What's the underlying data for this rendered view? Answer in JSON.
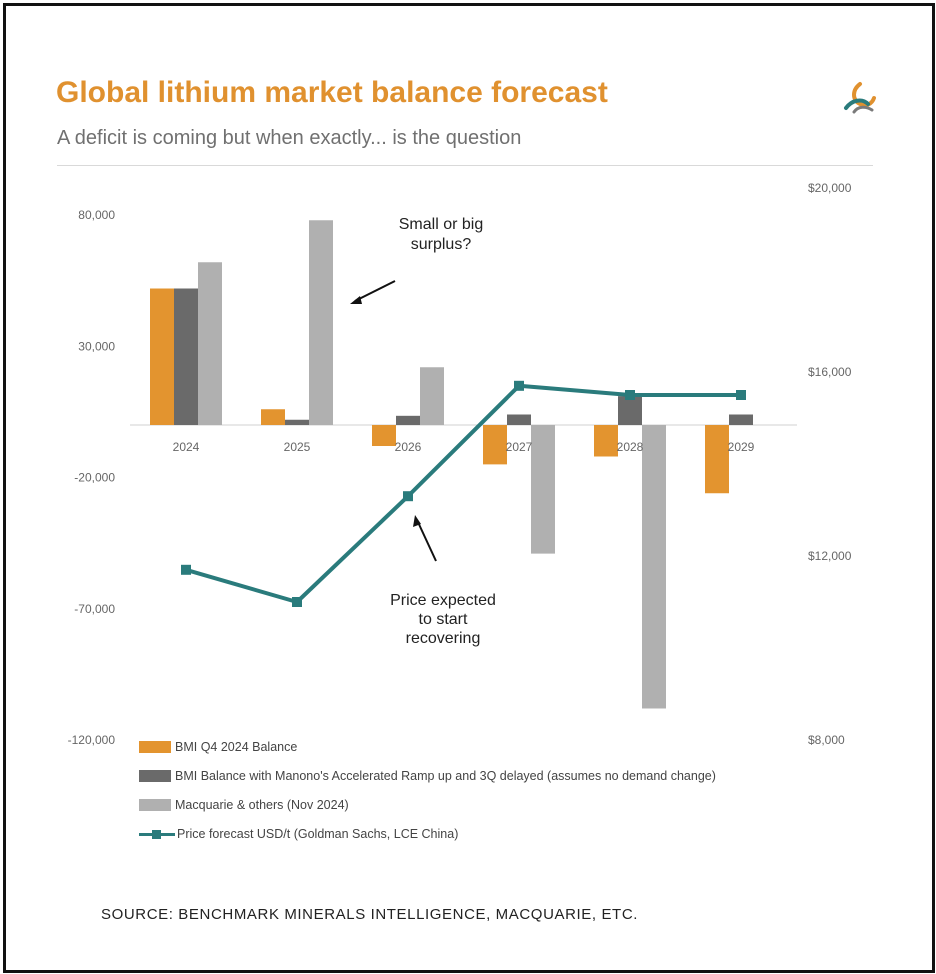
{
  "title": "Global lithium market balance forecast",
  "subtitle": "A deficit is coming but when exactly... is the question",
  "source": "SOURCE: BENCHMARK MINERALS INTELLIGENCE, MACQUARIE, ETC.",
  "logo_icon": "benchmark-swirl-logo",
  "colors": {
    "title": "#e0912f",
    "bmi_q4": "#e3942f",
    "bmi_manono": "#6a6a6a",
    "macquarie": "#b0b0b0",
    "price": "#2a7b7c"
  },
  "annotations": {
    "surplus": [
      "Small or big",
      "surplus?"
    ],
    "recovery": [
      "Price expected",
      "to start",
      "recovering"
    ]
  },
  "chart_data": {
    "type": "bar",
    "categories": [
      "2024",
      "2025",
      "2026",
      "2027",
      "2028",
      "2029"
    ],
    "left_axis": {
      "ticks": [
        "80,000",
        "30,000",
        "-20,000",
        "-70,000",
        "-120,000"
      ],
      "tick_values": [
        80000,
        30000,
        -20000,
        -70000,
        -120000
      ],
      "ylim": [
        -120000,
        80000
      ]
    },
    "right_axis": {
      "ticks": [
        "$20,000",
        "$16,000",
        "$12,000",
        "$8,000"
      ],
      "tick_values": [
        20000,
        16000,
        12000,
        8000
      ],
      "ylim": [
        8000,
        20000
      ]
    },
    "series": [
      {
        "name": "BMI Q4 2024 Balance",
        "type": "bar",
        "values": [
          52000,
          6000,
          -8000,
          -15000,
          -12000,
          -26000
        ]
      },
      {
        "name": "BMI Balance with Manono's Accelerated Ramp up and 3Q delayed (assumes no demand change)",
        "type": "bar",
        "values": [
          52000,
          2000,
          3500,
          4000,
          11000,
          4000
        ]
      },
      {
        "name": "Macquarie & others (Nov 2024)",
        "type": "bar",
        "values": [
          62000,
          78000,
          22000,
          -49000,
          -108000,
          null
        ]
      },
      {
        "name": "Price forecast USD/t (Goldman Sachs, LCE China)",
        "type": "line",
        "axis": "right",
        "values": [
          11700,
          11000,
          13300,
          15700,
          15500,
          15500
        ]
      }
    ],
    "grid": false,
    "legend_position": "bottom-left"
  }
}
